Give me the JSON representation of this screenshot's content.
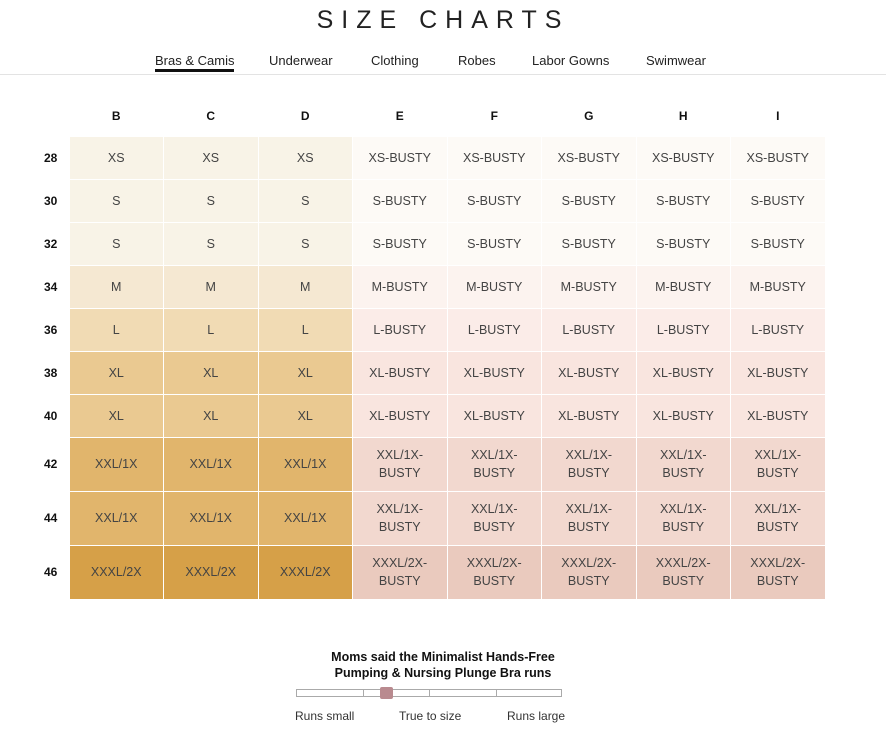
{
  "title": "SIZE CHARTS",
  "tabs": [
    {
      "label": "Bras & Camis",
      "active": true
    },
    {
      "label": "Underwear"
    },
    {
      "label": "Clothing"
    },
    {
      "label": "Robes"
    },
    {
      "label": "Labor Gowns"
    },
    {
      "label": "Swimwear"
    }
  ],
  "table": {
    "columns": [
      "B",
      "C",
      "D",
      "E",
      "F",
      "G",
      "H",
      "I"
    ],
    "rows": [
      {
        "band": "28",
        "cells": [
          "XS",
          "XS",
          "XS",
          "XS-BUSTY",
          "XS-BUSTY",
          "XS-BUSTY",
          "XS-BUSTY",
          "XS-BUSTY"
        ],
        "colors": [
          "#f8f3e7",
          "#fdfaf6"
        ]
      },
      {
        "band": "30",
        "cells": [
          "S",
          "S",
          "S",
          "S-BUSTY",
          "S-BUSTY",
          "S-BUSTY",
          "S-BUSTY",
          "S-BUSTY"
        ],
        "colors": [
          "#f8f3e7",
          "#fdfaf6"
        ]
      },
      {
        "band": "32",
        "cells": [
          "S",
          "S",
          "S",
          "S-BUSTY",
          "S-BUSTY",
          "S-BUSTY",
          "S-BUSTY",
          "S-BUSTY"
        ],
        "colors": [
          "#f8f3e7",
          "#fdfaf6"
        ]
      },
      {
        "band": "34",
        "cells": [
          "M",
          "M",
          "M",
          "M-BUSTY",
          "M-BUSTY",
          "M-BUSTY",
          "M-BUSTY",
          "M-BUSTY"
        ],
        "colors": [
          "#f5e8d2",
          "#fcf3ef"
        ]
      },
      {
        "band": "36",
        "cells": [
          "L",
          "L",
          "L",
          "L-BUSTY",
          "L-BUSTY",
          "L-BUSTY",
          "L-BUSTY",
          "L-BUSTY"
        ],
        "colors": [
          "#f1dbb4",
          "#fbece8"
        ]
      },
      {
        "band": "38",
        "cells": [
          "XL",
          "XL",
          "XL",
          "XL-BUSTY",
          "XL-BUSTY",
          "XL-BUSTY",
          "XL-BUSTY",
          "XL-BUSTY"
        ],
        "colors": [
          "#eac991",
          "#f9e5df"
        ]
      },
      {
        "band": "40",
        "cells": [
          "XL",
          "XL",
          "XL",
          "XL-BUSTY",
          "XL-BUSTY",
          "XL-BUSTY",
          "XL-BUSTY",
          "XL-BUSTY"
        ],
        "colors": [
          "#eac991",
          "#f9e5df"
        ]
      },
      {
        "band": "42",
        "cells": [
          "XXL/1X",
          "XXL/1X",
          "XXL/1X",
          "XXL/1X-BUSTY",
          "XXL/1X-BUSTY",
          "XXL/1X-BUSTY",
          "XXL/1X-BUSTY",
          "XXL/1X-BUSTY"
        ],
        "colors": [
          "#e1b56c",
          "#f2d8cf"
        ]
      },
      {
        "band": "44",
        "cells": [
          "XXL/1X",
          "XXL/1X",
          "XXL/1X",
          "XXL/1X-BUSTY",
          "XXL/1X-BUSTY",
          "XXL/1X-BUSTY",
          "XXL/1X-BUSTY",
          "XXL/1X-BUSTY"
        ],
        "colors": [
          "#e1b56c",
          "#f2d8cf"
        ]
      },
      {
        "band": "46",
        "cells": [
          "XXXL/2X",
          "XXXL/2X",
          "XXXL/2X",
          "XXXL/2X-BUSTY",
          "XXXL/2X-BUSTY",
          "XXXL/2X-BUSTY",
          "XXXL/2X-BUSTY",
          "XXXL/2X-BUSTY"
        ],
        "colors": [
          "#d6a048",
          "#eacabe"
        ]
      }
    ]
  },
  "fit_survey": {
    "line1": "Moms said the Minimalist Hands-Free",
    "line2": "Pumping & Nursing Plunge Bra runs",
    "value_fraction": 0.34,
    "thumb_color": "#b98a8f",
    "labels": {
      "small": "Runs small",
      "true": "True to size",
      "large": "Runs large"
    }
  }
}
